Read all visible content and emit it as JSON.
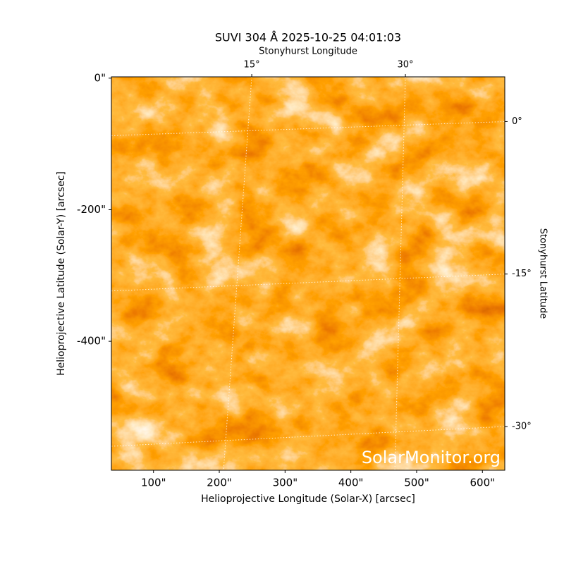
{
  "chart_data": {
    "type": "image",
    "title": "SUVI 304 Å 2025-10-25 04:01:03",
    "xlabel": "Helioprojective Longitude (Solar-X) [arcsec]",
    "ylabel": "Helioprojective Latitude (Solar-Y) [arcsec]",
    "x2label": "Stonyhurst Longitude",
    "y2label": "Stonyhurst Latitude",
    "watermark": "SolarMonitor.org",
    "xlim": [
      36,
      634
    ],
    "xticks": [
      {
        "value": 100,
        "label": "100\""
      },
      {
        "value": 200,
        "label": "200\""
      },
      {
        "value": 300,
        "label": "300\""
      },
      {
        "value": 400,
        "label": "400\""
      },
      {
        "value": 500,
        "label": "500\""
      },
      {
        "value": 600,
        "label": "600\""
      }
    ],
    "ylim": [
      -596,
      2
    ],
    "yticks": [
      {
        "value": 0,
        "label": "0\""
      },
      {
        "value": -200,
        "label": "-200\""
      },
      {
        "value": -400,
        "label": "-400\""
      }
    ],
    "x2lim": [
      1.3,
      39.7
    ],
    "x2ticks": [
      {
        "value": 15,
        "label": "15°"
      },
      {
        "value": 30,
        "label": "30°"
      }
    ],
    "y2lim": [
      -34.3,
      4.4
    ],
    "y2ticks": [
      {
        "value": 0,
        "label": "0°"
      },
      {
        "value": -15,
        "label": "-15°"
      },
      {
        "value": -30,
        "label": "-30°"
      }
    ],
    "grid": true
  }
}
